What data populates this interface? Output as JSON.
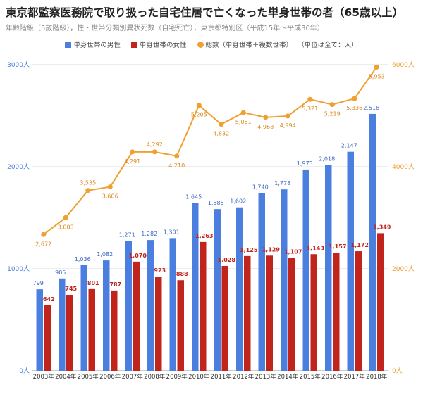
{
  "chart_data": {
    "type": "bar",
    "title": "東京都監察医務院で取り扱った自宅住居で亡くなった単身世帯の者（65歳以上）",
    "subtitle": "年齢階級（5歳階級），性・世帯分類別異状死数（自宅死亡），東京都特別区（平成15年〜平成30年）",
    "legend_note": "（単位は全て：人）",
    "categories": [
      "2003年",
      "2004年",
      "2005年",
      "2006年",
      "2007年",
      "2008年",
      "2009年",
      "2010年",
      "2011年",
      "2012年",
      "2013年",
      "2014年",
      "2015年",
      "2016年",
      "2017年",
      "2018年"
    ],
    "series": [
      {
        "name": "単身世帯の男性",
        "type": "bar",
        "axis": "left",
        "color": "#4a7fe0",
        "values": [
          799,
          905,
          1036,
          1082,
          1271,
          1282,
          1301,
          1645,
          1585,
          1602,
          1740,
          1778,
          1973,
          2018,
          2147,
          2518
        ],
        "labels": [
          "799",
          "905",
          "1,036",
          "1,082",
          "1,271",
          "1,282",
          "1,301",
          "1,645",
          "1,585",
          "1,602",
          "1,740",
          "1,778",
          "1,973",
          "2,018",
          "2,147",
          "2,518"
        ]
      },
      {
        "name": "単身世帯の女性",
        "type": "bar",
        "axis": "left",
        "color": "#c0241b",
        "values": [
          642,
          745,
          801,
          787,
          1070,
          923,
          888,
          1263,
          1028,
          1125,
          1129,
          1107,
          1143,
          1157,
          1172,
          1349
        ],
        "labels": [
          "642",
          "745",
          "801",
          "787",
          "1,070",
          "923",
          "888",
          "1,263",
          "1,028",
          "1,125",
          "1,129",
          "1,107",
          "1,143",
          "1,157",
          "1,172",
          "1,349"
        ]
      },
      {
        "name": "総数（単身世帯＋複数世帯）",
        "type": "line",
        "axis": "right",
        "color": "#f0a030",
        "values": [
          2672,
          3003,
          3535,
          3606,
          4291,
          4292,
          4210,
          5205,
          4832,
          5061,
          4968,
          4994,
          5321,
          5219,
          5336,
          5953
        ],
        "labels": [
          "2,672",
          "3,003",
          "3,535",
          "3,606",
          "4,291",
          "4,292",
          "4,210",
          "5,205",
          "4,832",
          "5,061",
          "4,968",
          "4,994",
          "5,321",
          "5,219",
          "5,336",
          "5,953"
        ]
      }
    ],
    "yleft": {
      "range": [
        0,
        3000
      ],
      "ticks": [
        0,
        1000,
        2000,
        3000
      ],
      "tick_labels": [
        "0人",
        "1000人",
        "2000人",
        "3000人"
      ],
      "color": "#4a7fe0"
    },
    "yright": {
      "range": [
        0,
        6000
      ],
      "ticks": [
        0,
        2000,
        4000,
        6000
      ],
      "tick_labels": [
        "0人",
        "2000人",
        "4000人",
        "6000人"
      ],
      "color": "#f0a030"
    },
    "grid": true,
    "legend_position": "top"
  }
}
